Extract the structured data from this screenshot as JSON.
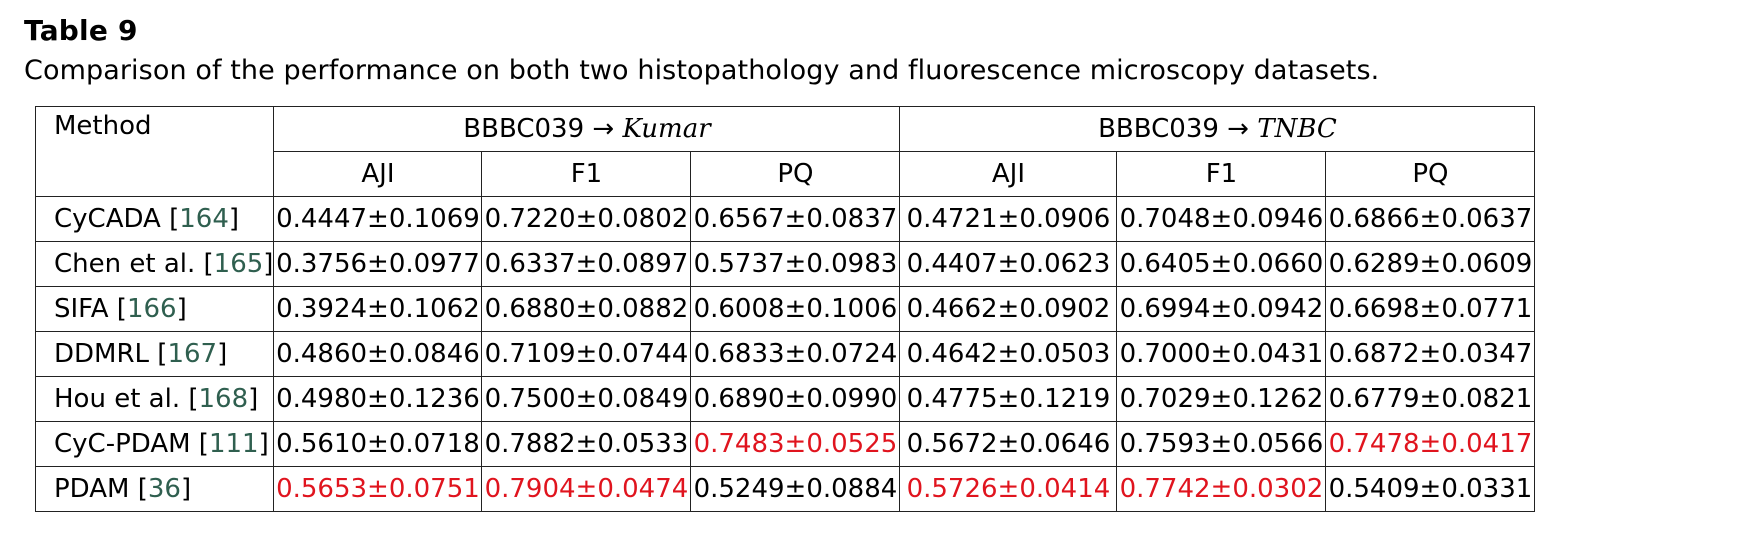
{
  "caption": {
    "label": "Table 9",
    "text": "Comparison of the performance on both two histopathology and fluorescence microscopy datasets."
  },
  "table": {
    "method_header": "Method",
    "groups": [
      {
        "prefix": "BBBC039 → ",
        "target": "Kumar"
      },
      {
        "prefix": "BBBC039 → ",
        "target": "TNBC"
      }
    ],
    "metrics": [
      "AJI",
      "F1",
      "PQ",
      "AJI",
      "F1",
      "PQ"
    ],
    "rows": [
      {
        "name": "CyCADA [",
        "ref": "164",
        "close": "]",
        "values": [
          "0.4447±0.1069",
          "0.7220±0.0802",
          "0.6567±0.0837",
          "0.4721±0.0906",
          "0.7048±0.0946",
          "0.6866±0.0637"
        ]
      },
      {
        "name": "Chen et al. [",
        "ref": "165",
        "close": "]",
        "values": [
          "0.3756±0.0977",
          "0.6337±0.0897",
          "0.5737±0.0983",
          "0.4407±0.0623",
          "0.6405±0.0660",
          "0.6289±0.0609"
        ]
      },
      {
        "name": "SIFA [",
        "ref": "166",
        "close": "]",
        "values": [
          "0.3924±0.1062",
          "0.6880±0.0882",
          "0.6008±0.1006",
          "0.4662±0.0902",
          "0.6994±0.0942",
          "0.6698±0.0771"
        ]
      },
      {
        "name": "DDMRL [",
        "ref": "167",
        "close": "]",
        "values": [
          "0.4860±0.0846",
          "0.7109±0.0744",
          "0.6833±0.0724",
          "0.4642±0.0503",
          "0.7000±0.0431",
          "0.6872±0.0347"
        ]
      },
      {
        "name": "Hou et al. [",
        "ref": "168",
        "close": "]",
        "values": [
          "0.4980±0.1236",
          "0.7500±0.0849",
          "0.6890±0.0990",
          "0.4775±0.1219",
          "0.7029±0.1262",
          "0.6779±0.0821"
        ]
      },
      {
        "name": "CyC-PDAM [",
        "ref": "111",
        "close": "]",
        "values": [
          "0.5610±0.0718",
          "0.7882±0.0533",
          "0.7483±0.0525",
          "0.5672±0.0646",
          "0.7593±0.0566",
          "0.7478±0.0417"
        ]
      },
      {
        "name": "PDAM [",
        "ref": "36",
        "close": "]",
        "values": [
          "0.5653±0.0751",
          "0.7904±0.0474",
          "0.5249±0.0884",
          "0.5726±0.0414",
          "0.7742±0.0302",
          "0.5409±0.0331"
        ]
      }
    ],
    "best_color": "#e0141e",
    "ref_color": "#2f5f4f"
  }
}
